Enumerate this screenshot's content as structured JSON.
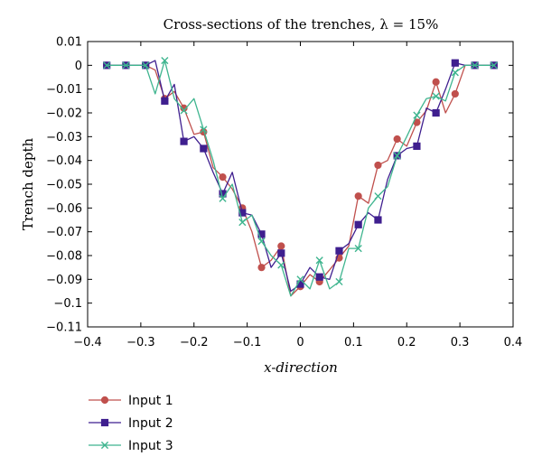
{
  "chart_data": {
    "type": "line",
    "title": "Cross-sections of the trenches, λ = 15%",
    "xlabel": "x-direction",
    "ylabel": "Trench depth",
    "xlim": [
      -0.4,
      0.4
    ],
    "ylim": [
      -0.11,
      0.01
    ],
    "xticks": [
      -0.4,
      -0.3,
      -0.2,
      -0.1,
      0,
      0.1,
      0.2,
      0.3,
      0.4
    ],
    "xtick_labels": [
      "−0.4",
      "−0.3",
      "−0.2",
      "−0.1",
      "0",
      "0.1",
      "0.2",
      "0.3",
      "0.4"
    ],
    "yticks": [
      0.01,
      0,
      -0.01,
      -0.02,
      -0.03,
      -0.04,
      -0.05,
      -0.06,
      -0.07,
      -0.08,
      -0.09,
      -0.1,
      -0.11
    ],
    "ytick_labels": [
      "0.01",
      "0",
      "−0.01",
      "−0.02",
      "−0.03",
      "−0.04",
      "−0.05",
      "−0.06",
      "−0.07",
      "−0.08",
      "−0.09",
      "−0.1",
      "−0.11"
    ],
    "grid": false,
    "legend_position": "below-left",
    "series": [
      {
        "name": "Input 1",
        "color": "#c0504d",
        "marker": "circle",
        "x": [
          -0.364,
          -0.346,
          -0.328,
          -0.31,
          -0.291,
          -0.273,
          -0.255,
          -0.237,
          -0.219,
          -0.2,
          -0.182,
          -0.164,
          -0.146,
          -0.128,
          -0.109,
          -0.091,
          -0.073,
          -0.055,
          -0.036,
          -0.018,
          0,
          0.018,
          0.036,
          0.055,
          0.073,
          0.091,
          0.109,
          0.128,
          0.146,
          0.164,
          0.182,
          0.2,
          0.219,
          0.237,
          0.255,
          0.273,
          0.291,
          0.31,
          0.328,
          0.346,
          0.364
        ],
        "y": [
          0,
          0,
          0,
          0,
          0,
          -0.002,
          -0.014,
          -0.011,
          -0.018,
          -0.029,
          -0.028,
          -0.043,
          -0.047,
          -0.052,
          -0.06,
          -0.07,
          -0.085,
          -0.082,
          -0.076,
          -0.097,
          -0.093,
          -0.088,
          -0.091,
          -0.086,
          -0.081,
          -0.076,
          -0.055,
          -0.058,
          -0.042,
          -0.04,
          -0.031,
          -0.034,
          -0.024,
          -0.019,
          -0.007,
          -0.02,
          -0.012,
          0,
          0,
          0,
          0
        ],
        "marked_x": [
          -0.364,
          -0.328,
          -0.291,
          -0.255,
          -0.219,
          -0.182,
          -0.146,
          -0.109,
          -0.073,
          -0.036,
          0,
          0.036,
          0.073,
          0.109,
          0.146,
          0.182,
          0.219,
          0.255,
          0.291,
          0.328,
          0.364
        ]
      },
      {
        "name": "Input 2",
        "color": "#3f1f8f",
        "marker": "square",
        "x": [
          -0.364,
          -0.346,
          -0.328,
          -0.31,
          -0.291,
          -0.273,
          -0.255,
          -0.237,
          -0.219,
          -0.2,
          -0.182,
          -0.164,
          -0.146,
          -0.128,
          -0.109,
          -0.091,
          -0.073,
          -0.055,
          -0.036,
          -0.018,
          0,
          0.018,
          0.036,
          0.055,
          0.073,
          0.091,
          0.109,
          0.128,
          0.146,
          0.164,
          0.182,
          0.2,
          0.219,
          0.237,
          0.255,
          0.273,
          0.291,
          0.31,
          0.328,
          0.346,
          0.364
        ],
        "y": [
          0,
          0,
          0,
          0,
          0,
          0.002,
          -0.015,
          -0.008,
          -0.032,
          -0.03,
          -0.035,
          -0.045,
          -0.054,
          -0.045,
          -0.062,
          -0.063,
          -0.071,
          -0.085,
          -0.079,
          -0.095,
          -0.092,
          -0.085,
          -0.089,
          -0.09,
          -0.078,
          -0.075,
          -0.067,
          -0.062,
          -0.065,
          -0.048,
          -0.038,
          -0.035,
          -0.034,
          -0.018,
          -0.02,
          -0.01,
          0.001,
          0,
          0,
          0,
          0
        ],
        "marked_x": [
          -0.364,
          -0.328,
          -0.291,
          -0.255,
          -0.219,
          -0.182,
          -0.146,
          -0.109,
          -0.073,
          -0.036,
          0,
          0.036,
          0.073,
          0.109,
          0.146,
          0.182,
          0.219,
          0.255,
          0.291,
          0.328,
          0.364
        ]
      },
      {
        "name": "Input 3",
        "color": "#3fb58f",
        "marker": "x",
        "x": [
          -0.364,
          -0.346,
          -0.328,
          -0.31,
          -0.291,
          -0.273,
          -0.255,
          -0.237,
          -0.219,
          -0.2,
          -0.182,
          -0.164,
          -0.146,
          -0.128,
          -0.109,
          -0.091,
          -0.073,
          -0.055,
          -0.036,
          -0.018,
          0,
          0.018,
          0.036,
          0.055,
          0.073,
          0.091,
          0.109,
          0.128,
          0.146,
          0.164,
          0.182,
          0.2,
          0.219,
          0.237,
          0.255,
          0.273,
          0.291,
          0.31,
          0.328,
          0.346,
          0.364
        ],
        "y": [
          0,
          0,
          0,
          0,
          0,
          -0.012,
          0.002,
          -0.014,
          -0.019,
          -0.014,
          -0.027,
          -0.04,
          -0.056,
          -0.05,
          -0.066,
          -0.063,
          -0.074,
          -0.08,
          -0.084,
          -0.097,
          -0.09,
          -0.094,
          -0.082,
          -0.094,
          -0.091,
          -0.077,
          -0.077,
          -0.06,
          -0.055,
          -0.051,
          -0.038,
          -0.03,
          -0.021,
          -0.014,
          -0.013,
          -0.015,
          -0.003,
          0,
          0,
          0,
          0
        ],
        "marked_x": [
          -0.364,
          -0.328,
          -0.291,
          -0.255,
          -0.219,
          -0.182,
          -0.146,
          -0.109,
          -0.073,
          -0.036,
          0,
          0.036,
          0.073,
          0.109,
          0.146,
          0.182,
          0.219,
          0.255,
          0.291,
          0.328,
          0.364
        ]
      }
    ]
  }
}
